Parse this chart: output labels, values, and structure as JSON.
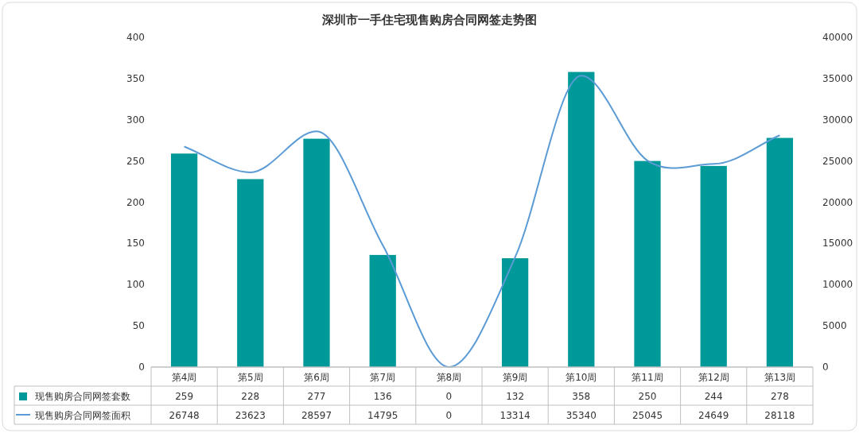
{
  "chart_data": {
    "type": "bar",
    "title": "深圳市一手住宅现售购房合同网签走势图",
    "categories": [
      "第4周",
      "第5周",
      "第6周",
      "第7周",
      "第8周",
      "第9周",
      "第10周",
      "第11周",
      "第12周",
      "第13周"
    ],
    "series": [
      {
        "name": "现售购房合同网签套数",
        "color": "#009999",
        "values": [
          259,
          228,
          277,
          136,
          0,
          132,
          358,
          250,
          244,
          278
        ]
      },
      {
        "name": "现售购房合同网签面积",
        "type": "line",
        "axis": "y2",
        "color": "#5b9bd5",
        "values": [
          26748,
          23623,
          28597,
          14795,
          0,
          13314,
          35340,
          25045,
          24649,
          28118
        ]
      }
    ],
    "ylim": [
      0,
      400
    ],
    "yticks": [
      0,
      50,
      100,
      150,
      200,
      250,
      300,
      350,
      400
    ],
    "y2lim": [
      0,
      40000
    ],
    "y2ticks": [
      0,
      5000,
      10000,
      15000,
      20000,
      25000,
      30000,
      35000,
      40000
    ],
    "data_labels": true,
    "legend": "bottom"
  }
}
